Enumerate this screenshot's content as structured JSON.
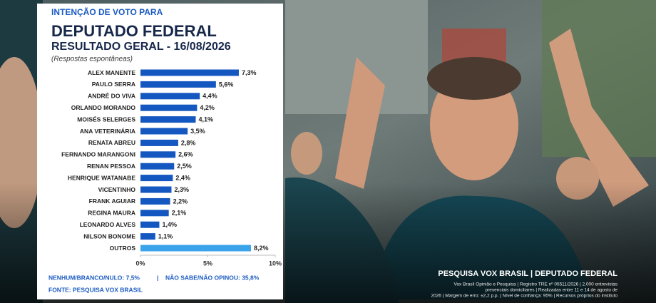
{
  "chart_data": {
    "type": "hbar",
    "overline": "INTENÇÃO DE VOTO PARA",
    "title": "DEPUTADO FEDERAL",
    "subtitle": "RESULTADO GERAL - 16/08/2026",
    "note": "(Respostas espontâneas)",
    "categories": [
      "ALEX MANENTE",
      "PAULO SERRA",
      "ANDRÉ DO VIVA",
      "ORLANDO MORANDO",
      "MOISÉS SELERGES",
      "ANA VETERINÁRIA",
      "RENATA ABREU",
      "FERNANDO MARANGONI",
      "RENAN PESSOA",
      "HENRIQUE WATANABE",
      "VICENTINHO",
      "FRANK AGUIAR",
      "REGINA MAURA",
      "LEONARDO ALVES",
      "NILSON BONOME",
      "OUTROS"
    ],
    "values": [
      7.3,
      5.6,
      4.4,
      4.2,
      4.1,
      3.5,
      2.8,
      2.6,
      2.5,
      2.4,
      2.3,
      2.2,
      2.1,
      1.4,
      1.1,
      8.2
    ],
    "value_labels": [
      "7,3%",
      "5,6%",
      "4,4%",
      "4,2%",
      "4,1%",
      "3,5%",
      "2,8%",
      "2,6%",
      "2,5%",
      "2,4%",
      "2,3%",
      "2,2%",
      "2,1%",
      "1,4%",
      "1,1%",
      "8,2%"
    ],
    "colors": [
      "#1557c0",
      "#1557c0",
      "#1557c0",
      "#1557c0",
      "#1557c0",
      "#1557c0",
      "#1557c0",
      "#1557c0",
      "#1557c0",
      "#1557c0",
      "#1557c0",
      "#1557c0",
      "#1557c0",
      "#1557c0",
      "#1557c0",
      "#3aa3ea"
    ],
    "xlim": [
      0,
      10
    ],
    "xticks": [
      {
        "value": 0,
        "label": "0%"
      },
      {
        "value": 5,
        "label": "5%"
      },
      {
        "value": 10,
        "label": "10%"
      }
    ]
  },
  "footer": {
    "blank_null": "NENHUM/BRANCO/NULO: 7,5%",
    "separator": "|",
    "undecided": "NÃO SABE/NÃO OPINOU: 35,8%",
    "source": "FONTE: PESQUISA VOX BRASIL"
  },
  "caption": {
    "title": "PESQUISA VOX BRASIL | DEPUTADO FEDERAL",
    "line1": "Vox Brasil Opinião e Pesquisa | Registro TRE nº 05511/2026 | 2.000 entrevistas",
    "line2": "presenciais domiciliares | Realizadas entre 11 e 14 de agosto de",
    "line3": "2026 | Margem de erro: ±2,2 p.p. | Nível de confiança: 95% | Recursos próprios do instituto"
  }
}
